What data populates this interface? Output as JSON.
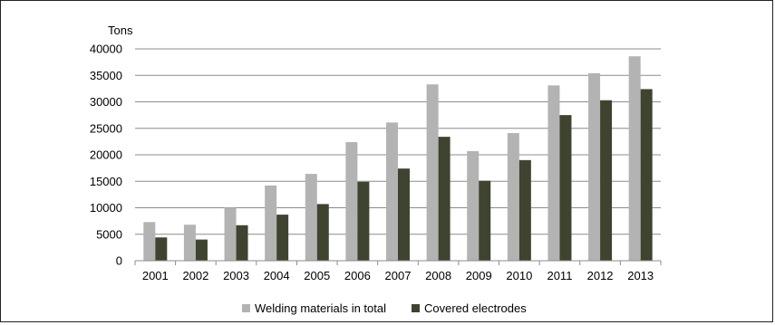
{
  "chart_data": {
    "type": "bar",
    "ylabel": "Tons",
    "categories": [
      "2001",
      "2002",
      "2003",
      "2004",
      "2005",
      "2006",
      "2007",
      "2008",
      "2009",
      "2010",
      "2011",
      "2012",
      "2013"
    ],
    "series": [
      {
        "name": "Welding materials in total",
        "color": "#b3b3b3",
        "values": [
          7300,
          6800,
          10000,
          14200,
          16400,
          22400,
          26100,
          33300,
          20700,
          24100,
          33100,
          35400,
          38600
        ]
      },
      {
        "name": "Covered electrodes",
        "color": "#3e4430",
        "values": [
          4400,
          4000,
          6700,
          8700,
          10700,
          14900,
          17400,
          23400,
          15100,
          19000,
          27500,
          30300,
          32400
        ]
      }
    ],
    "ylim": [
      0,
      40000
    ],
    "yticks": [
      0,
      5000,
      10000,
      15000,
      20000,
      25000,
      30000,
      35000,
      40000
    ],
    "grid": true,
    "legend_position": "bottom"
  }
}
